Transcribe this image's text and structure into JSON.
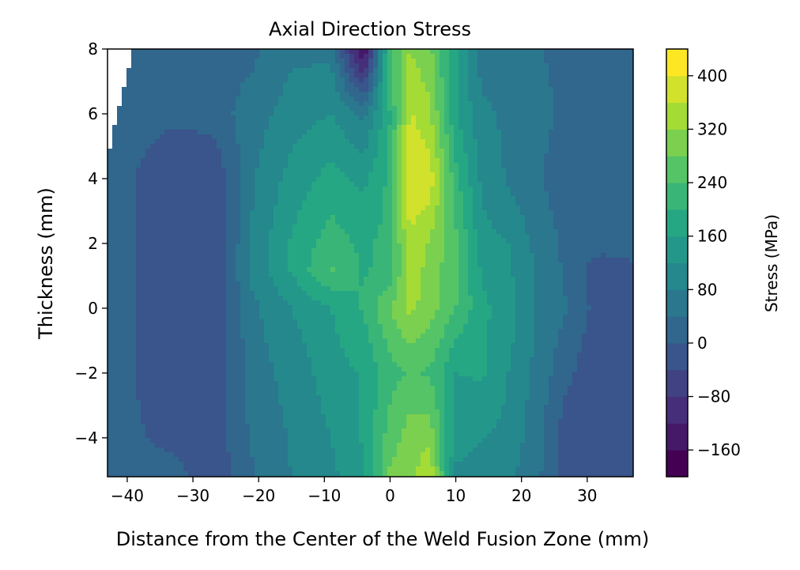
{
  "chart_data": {
    "type": "contour",
    "title": "Axial Direction Stress",
    "xlabel": "Distance from the Center of the Weld Fusion Zone (mm)",
    "ylabel": "Thickness (mm)",
    "xlim": [
      -43,
      37
    ],
    "ylim": [
      -5.2,
      8
    ],
    "x_ticks": [
      -40,
      -30,
      -20,
      -10,
      0,
      10,
      20,
      30
    ],
    "x_tick_labels": [
      "−40",
      "−30",
      "−20",
      "−10",
      "0",
      "10",
      "20",
      "30"
    ],
    "y_ticks": [
      -4,
      -2,
      0,
      2,
      4,
      6,
      8
    ],
    "y_tick_labels": [
      "−4",
      "−2",
      "0",
      "2",
      "4",
      "6",
      "8"
    ],
    "colorbar": {
      "label": "Stress (MPa)",
      "range": [
        -200,
        440
      ],
      "level_step": 40,
      "tick_values": [
        -160,
        -80,
        0,
        80,
        160,
        240,
        320,
        400
      ],
      "tick_labels": [
        "−160",
        "−80",
        "0",
        "80",
        "160",
        "240",
        "320",
        "400"
      ],
      "colormap": "viridis"
    },
    "grid": false,
    "unfilled_region": "top-left corner",
    "x": [
      -43,
      -39,
      -33,
      -27,
      -21,
      -15,
      -9,
      -4,
      0,
      3,
      6,
      10,
      14,
      18,
      23,
      27,
      32,
      37
    ],
    "y": [
      -5.2,
      -4,
      -2,
      0,
      1.2,
      2,
      4,
      6,
      8
    ],
    "z": [
      [
        20,
        30,
        25,
        -40,
        35,
        80,
        110,
        150,
        290,
        300,
        360,
        110,
        95,
        90,
        40,
        -20,
        -40,
        -40
      ],
      [
        20,
        10,
        -20,
        -20,
        45,
        85,
        120,
        165,
        260,
        300,
        310,
        140,
        120,
        110,
        45,
        -30,
        -40,
        -40
      ],
      [
        20,
        0,
        -40,
        -40,
        60,
        95,
        140,
        165,
        225,
        245,
        235,
        160,
        165,
        120,
        60,
        10,
        -40,
        -40
      ],
      [
        20,
        0,
        -40,
        -40,
        70,
        120,
        160,
        205,
        280,
        330,
        300,
        240,
        170,
        140,
        70,
        40,
        -20,
        -40
      ],
      [
        20,
        0,
        -40,
        -40,
        90,
        165,
        245,
        195,
        215,
        345,
        305,
        250,
        155,
        125,
        70,
        30,
        -25,
        -10
      ],
      [
        20,
        0,
        -40,
        -40,
        85,
        165,
        220,
        190,
        215,
        355,
        315,
        250,
        135,
        120,
        60,
        30,
        20,
        20
      ],
      [
        20,
        0,
        -40,
        -40,
        75,
        135,
        175,
        150,
        210,
        395,
        385,
        215,
        110,
        75,
        40,
        20,
        10,
        10
      ],
      [
        null,
        20,
        10,
        20,
        60,
        100,
        120,
        70,
        200,
        365,
        330,
        165,
        90,
        70,
        50,
        30,
        20,
        20
      ],
      [
        null,
        null,
        20,
        20,
        30,
        70,
        70,
        -180,
        240,
        320,
        290,
        165,
        60,
        60,
        40,
        30,
        20,
        20
      ]
    ]
  }
}
